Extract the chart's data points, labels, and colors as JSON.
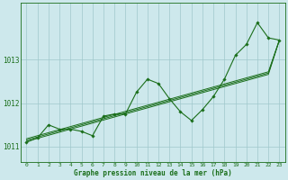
{
  "x": [
    0,
    1,
    2,
    3,
    4,
    5,
    6,
    7,
    8,
    9,
    10,
    11,
    12,
    13,
    14,
    15,
    16,
    17,
    18,
    19,
    20,
    21,
    22,
    23
  ],
  "y_main": [
    1011.1,
    1011.2,
    1011.5,
    1011.4,
    1011.4,
    1011.35,
    1011.25,
    1011.7,
    1011.75,
    1011.75,
    1012.25,
    1012.55,
    1012.45,
    1012.1,
    1011.8,
    1011.6,
    1011.85,
    1012.15,
    1012.55,
    1013.1,
    1013.35,
    1013.85,
    1013.5,
    1013.45
  ],
  "y_line1": [
    1011.12,
    1011.19,
    1011.26,
    1011.33,
    1011.4,
    1011.47,
    1011.54,
    1011.61,
    1011.68,
    1011.75,
    1011.82,
    1011.89,
    1011.96,
    1012.03,
    1012.1,
    1012.17,
    1012.24,
    1012.31,
    1012.38,
    1012.45,
    1012.52,
    1012.59,
    1012.66,
    1013.45
  ],
  "y_line2": [
    1011.15,
    1011.22,
    1011.29,
    1011.36,
    1011.43,
    1011.5,
    1011.57,
    1011.64,
    1011.71,
    1011.78,
    1011.85,
    1011.92,
    1011.99,
    1012.06,
    1012.13,
    1012.2,
    1012.27,
    1012.34,
    1012.41,
    1012.48,
    1012.55,
    1012.62,
    1012.69,
    1013.45
  ],
  "y_line3": [
    1011.18,
    1011.25,
    1011.32,
    1011.39,
    1011.46,
    1011.53,
    1011.6,
    1011.67,
    1011.74,
    1011.81,
    1011.88,
    1011.95,
    1012.02,
    1012.09,
    1012.16,
    1012.23,
    1012.3,
    1012.37,
    1012.44,
    1012.51,
    1012.58,
    1012.65,
    1012.72,
    1013.45
  ],
  "bg_color": "#cde8ec",
  "line_color": "#1a6e1a",
  "grid_color": "#a0c8cc",
  "xlabel": "Graphe pression niveau de la mer (hPa)",
  "ylim": [
    1010.65,
    1014.3
  ],
  "xlim": [
    -0.5,
    23.5
  ],
  "yticks": [
    1011,
    1012,
    1013
  ],
  "xticks": [
    0,
    1,
    2,
    3,
    4,
    5,
    6,
    7,
    8,
    9,
    10,
    11,
    12,
    13,
    14,
    15,
    16,
    17,
    18,
    19,
    20,
    21,
    22,
    23
  ],
  "figwidth": 3.2,
  "figheight": 2.0,
  "dpi": 100
}
